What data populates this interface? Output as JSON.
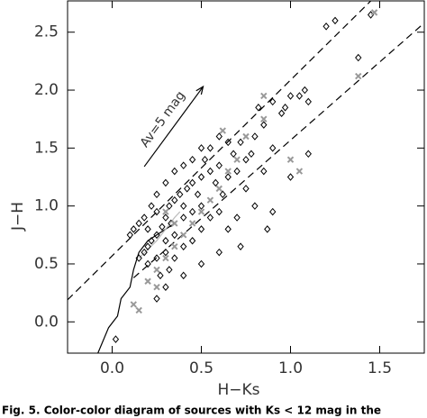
{
  "chart_data": {
    "type": "scatter",
    "xlabel": "H−Ks",
    "ylabel": "J−H",
    "annotation": "Av=5 mag",
    "caption": "Fig. 5. Color-color diagram of sources with Ks < 12 mag in the",
    "xlim": [
      -0.25,
      1.75
    ],
    "ylim": [
      -0.27,
      2.77
    ],
    "xticks": [
      {
        "value": 0,
        "label": "0.0"
      },
      0.5,
      {
        "value": 1,
        "label": "1.0"
      },
      1.5
    ],
    "yticks": [
      {
        "value": 0,
        "label": "0.0"
      },
      0.5,
      {
        "value": 1,
        "label": "1.0"
      },
      1.5,
      {
        "value": 2,
        "label": "2.0"
      },
      2.5
    ],
    "series": [
      {
        "marker": "diamond",
        "color": "#000000",
        "x": [
          0.15,
          0.18,
          0.2,
          0.22,
          0.25,
          0.2,
          0.28,
          0.3,
          0.25,
          0.32,
          0.35,
          0.38,
          0.4,
          0.42,
          0.45,
          0.3,
          0.35,
          0.33,
          0.4,
          0.45,
          0.5,
          0.48,
          0.5,
          0.55,
          0.52,
          0.6,
          0.58,
          0.62,
          0.65,
          0.68,
          0.7,
          0.75,
          0.72,
          0.8,
          0.78,
          0.85,
          0.82,
          0.9,
          0.95,
          1.0,
          1.05,
          1.1,
          1.08,
          0.97,
          1.2,
          1.25,
          1.38,
          1.45,
          0.65,
          0.6,
          0.55,
          0.5,
          0.45,
          0.4,
          0.35,
          0.3,
          0.25,
          0.22,
          0.18,
          0.15,
          0.12,
          0.1,
          0.2,
          0.25,
          0.3,
          0.35,
          0.4,
          0.45,
          0.5,
          0.55,
          0.6,
          0.65,
          0.7,
          0.8,
          0.9,
          0.87,
          0.72,
          0.6,
          0.5,
          0.4,
          0.3,
          0.25,
          0.02,
          0.27,
          0.32,
          0.9,
          1.1,
          0.85,
          0.75,
          1.0
        ],
        "values": [
          0.55,
          0.6,
          0.65,
          0.7,
          0.75,
          0.8,
          0.82,
          0.9,
          0.95,
          1.0,
          1.05,
          1.1,
          1.0,
          1.15,
          1.2,
          0.7,
          0.75,
          0.85,
          0.9,
          0.95,
          1.0,
          1.1,
          1.25,
          1.3,
          1.4,
          1.35,
          1.2,
          1.1,
          1.25,
          1.45,
          1.3,
          1.4,
          1.55,
          1.6,
          1.45,
          1.7,
          1.85,
          1.9,
          1.8,
          1.95,
          1.95,
          1.9,
          2.0,
          1.85,
          2.55,
          2.6,
          2.28,
          2.65,
          1.55,
          1.6,
          1.5,
          1.5,
          1.4,
          1.35,
          1.3,
          1.2,
          1.1,
          1.0,
          0.9,
          0.85,
          0.8,
          0.75,
          0.5,
          0.55,
          0.6,
          0.55,
          0.65,
          0.7,
          0.8,
          0.9,
          0.95,
          0.8,
          0.9,
          1.0,
          0.95,
          0.8,
          0.65,
          0.6,
          0.5,
          0.4,
          0.3,
          0.2,
          -0.15,
          0.4,
          0.45,
          1.5,
          1.45,
          1.3,
          1.15,
          1.25
        ]
      },
      {
        "marker": "cross",
        "color": "#999999",
        "x": [
          0.2,
          0.25,
          0.3,
          0.35,
          0.4,
          0.45,
          0.15,
          0.12,
          0.5,
          0.55,
          0.6,
          0.65,
          0.7,
          0.75,
          0.85,
          0.85,
          1.0,
          1.05,
          1.38,
          1.47,
          0.62,
          0.3,
          0.35,
          0.25
        ],
        "values": [
          0.35,
          0.45,
          0.55,
          0.65,
          0.75,
          0.85,
          0.1,
          0.15,
          0.95,
          1.05,
          1.15,
          1.3,
          1.4,
          1.6,
          1.95,
          1.75,
          1.4,
          1.3,
          2.12,
          2.67,
          1.65,
          0.95,
          0.85,
          0.3
        ]
      }
    ],
    "lines": [
      {
        "x": [
          -0.25,
          1.45
        ],
        "y": [
          0.19,
          2.77
        ],
        "color": "#000000",
        "dash": true
      },
      {
        "x": [
          0.12,
          1.75
        ],
        "y": [
          0.38,
          2.58
        ],
        "color": "#000000",
        "dash": true
      },
      {
        "x": [
          -0.08,
          -0.02,
          0.03,
          0.05,
          0.1,
          0.12,
          0.15,
          0.2,
          0.25,
          0.3,
          0.35
        ],
        "y": [
          -0.27,
          -0.05,
          0.05,
          0.2,
          0.3,
          0.45,
          0.6,
          0.7,
          0.75,
          0.8,
          0.85
        ],
        "color": "#000000",
        "dash": false
      },
      {
        "x": [
          0.15,
          0.25,
          0.3,
          0.35,
          0.38
        ],
        "y": [
          0.55,
          0.7,
          0.8,
          0.9,
          0.95
        ],
        "color": "#bbbbbb",
        "dash": false
      }
    ],
    "arrow": {
      "x": [
        0.18,
        0.51
      ],
      "y": [
        1.34,
        2.03
      ]
    }
  }
}
